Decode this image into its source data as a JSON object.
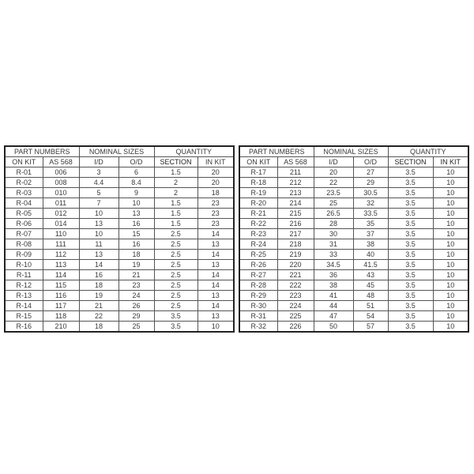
{
  "tables": [
    {
      "group_headers": [
        "PART NUMBERS",
        "NOMINAL SIZES",
        "QUANTITY"
      ],
      "columns": [
        "ON KIT",
        "AS 568",
        "I/D",
        "O/D",
        "SECTION",
        "IN KIT"
      ],
      "rows": [
        [
          "R-01",
          "006",
          "3",
          "6",
          "1.5",
          "20"
        ],
        [
          "R-02",
          "008",
          "4.4",
          "8.4",
          "2",
          "20"
        ],
        [
          "R-03",
          "010",
          "5",
          "9",
          "2",
          "18"
        ],
        [
          "R-04",
          "011",
          "7",
          "10",
          "1.5",
          "23"
        ],
        [
          "R-05",
          "012",
          "10",
          "13",
          "1.5",
          "23"
        ],
        [
          "R-06",
          "014",
          "13",
          "16",
          "1.5",
          "23"
        ],
        [
          "R-07",
          "110",
          "10",
          "15",
          "2.5",
          "14"
        ],
        [
          "R-08",
          "111",
          "11",
          "16",
          "2.5",
          "13"
        ],
        [
          "R-09",
          "112",
          "13",
          "18",
          "2.5",
          "14"
        ],
        [
          "R-10",
          "113",
          "14",
          "19",
          "2.5",
          "13"
        ],
        [
          "R-11",
          "114",
          "16",
          "21",
          "2.5",
          "14"
        ],
        [
          "R-12",
          "115",
          "18",
          "23",
          "2.5",
          "14"
        ],
        [
          "R-13",
          "116",
          "19",
          "24",
          "2.5",
          "13"
        ],
        [
          "R-14",
          "117",
          "21",
          "26",
          "2.5",
          "14"
        ],
        [
          "R-15",
          "118",
          "22",
          "29",
          "3.5",
          "13"
        ],
        [
          "R-16",
          "210",
          "18",
          "25",
          "3.5",
          "10"
        ]
      ]
    },
    {
      "group_headers": [
        "PART NUMBERS",
        "NOMINAL SIZES",
        "QUANTITY"
      ],
      "columns": [
        "ON KIT",
        "AS 568",
        "I/D",
        "O/D",
        "SECTION",
        "IN KIT"
      ],
      "rows": [
        [
          "R-17",
          "211",
          "20",
          "27",
          "3.5",
          "10"
        ],
        [
          "R-18",
          "212",
          "22",
          "29",
          "3.5",
          "10"
        ],
        [
          "R-19",
          "213",
          "23.5",
          "30.5",
          "3.5",
          "10"
        ],
        [
          "R-20",
          "214",
          "25",
          "32",
          "3.5",
          "10"
        ],
        [
          "R-21",
          "215",
          "26.5",
          "33.5",
          "3.5",
          "10"
        ],
        [
          "R-22",
          "216",
          "28",
          "35",
          "3.5",
          "10"
        ],
        [
          "R-23",
          "217",
          "30",
          "37",
          "3.5",
          "10"
        ],
        [
          "R-24",
          "218",
          "31",
          "38",
          "3.5",
          "10"
        ],
        [
          "R-25",
          "219",
          "33",
          "40",
          "3.5",
          "10"
        ],
        [
          "R-26",
          "220",
          "34.5",
          "41.5",
          "3.5",
          "10"
        ],
        [
          "R-27",
          "221",
          "36",
          "43",
          "3.5",
          "10"
        ],
        [
          "R-28",
          "222",
          "38",
          "45",
          "3.5",
          "10"
        ],
        [
          "R-29",
          "223",
          "41",
          "48",
          "3.5",
          "10"
        ],
        [
          "R-30",
          "224",
          "44",
          "51",
          "3.5",
          "10"
        ],
        [
          "R-31",
          "225",
          "47",
          "54",
          "3.5",
          "10"
        ],
        [
          "R-32",
          "226",
          "50",
          "57",
          "3.5",
          "10"
        ]
      ]
    }
  ]
}
